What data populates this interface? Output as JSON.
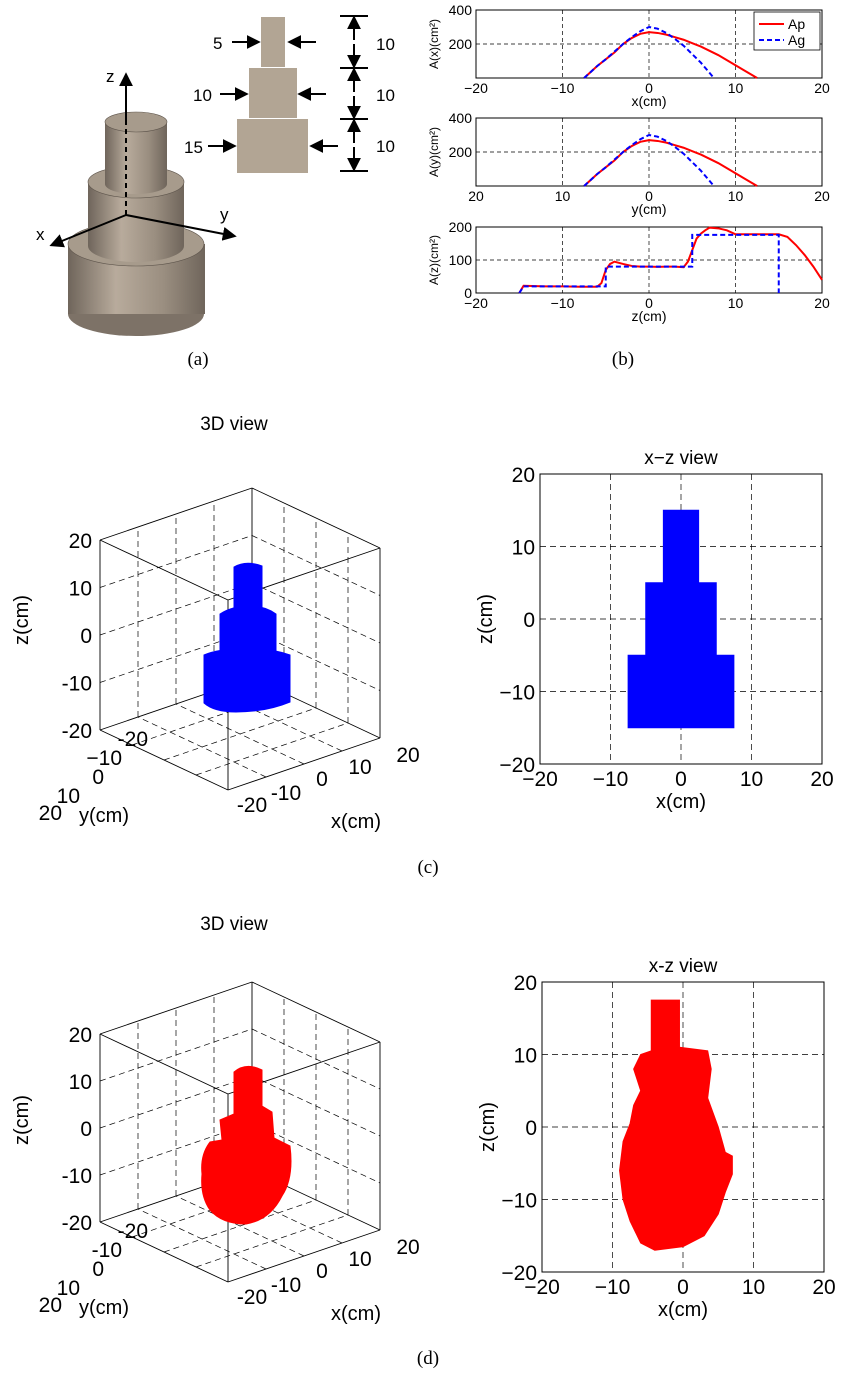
{
  "subfig_labels": [
    "(a)",
    "(b)",
    "(c)",
    "(d)"
  ],
  "panel_a": {
    "axis_labels": {
      "z": "z",
      "y": "y",
      "x": "x"
    },
    "diameter_labels": [
      "5",
      "10",
      "15"
    ],
    "height_labels": [
      "10",
      "10",
      "10"
    ],
    "colors": {
      "cylinder": "#9a8e80",
      "cylinder_light": "#b8ab9c",
      "cylinder_dark": "#6f655b",
      "inset": "#b2a594"
    }
  },
  "chart_data": [
    {
      "type": "line",
      "xlabel": "x(cm)",
      "ylabel": "A(x)(cm²)",
      "xlim": [
        -20,
        20
      ],
      "ylim": [
        0,
        400
      ],
      "xticks": [
        -20,
        -10,
        0,
        10,
        20
      ],
      "yticks": [
        200,
        400
      ],
      "grid": true,
      "legend": {
        "position": "top-right",
        "entries": [
          "Ap",
          "Ag"
        ]
      },
      "series": [
        {
          "name": "Ap",
          "color": "#ff0000",
          "dash": "solid",
          "x": [
            -7.5,
            -6,
            -5,
            -4,
            -3,
            -2,
            -1,
            0,
            1,
            2,
            3,
            4,
            5,
            6,
            7,
            8,
            9,
            10,
            11,
            12.5
          ],
          "y": [
            0,
            70,
            110,
            150,
            200,
            235,
            260,
            270,
            265,
            255,
            240,
            225,
            205,
            185,
            160,
            135,
            105,
            75,
            45,
            0
          ]
        },
        {
          "name": "Ag",
          "color": "#0000ff",
          "dash": "dashed",
          "x": [
            -7.5,
            -6,
            -5,
            -4,
            -3,
            -2,
            -1,
            0,
            1,
            2,
            3,
            4,
            5,
            6,
            7,
            7.5
          ],
          "y": [
            0,
            70,
            110,
            155,
            200,
            240,
            275,
            300,
            290,
            265,
            230,
            190,
            140,
            90,
            30,
            0
          ]
        }
      ]
    },
    {
      "type": "line",
      "xlabel": "y(cm)",
      "ylabel": "A(y)(cm²)",
      "xlim": [
        -20,
        20
      ],
      "ylim": [
        0,
        400
      ],
      "xticks": [
        -20,
        -10,
        0,
        10,
        20
      ],
      "xticklabels": [
        "20",
        "10",
        "0",
        "10",
        "20"
      ],
      "yticks": [
        200,
        400
      ],
      "grid": true,
      "series": [
        {
          "name": "Ap",
          "color": "#ff0000",
          "dash": "solid",
          "x": [
            -7.5,
            -6,
            -5,
            -4,
            -3,
            -2,
            -1,
            0,
            1,
            2,
            3,
            4,
            5,
            6,
            7,
            8,
            9,
            10,
            11,
            12.5
          ],
          "y": [
            0,
            70,
            110,
            150,
            200,
            235,
            260,
            270,
            265,
            255,
            240,
            225,
            205,
            185,
            160,
            135,
            105,
            75,
            45,
            0
          ]
        },
        {
          "name": "Ag",
          "color": "#0000ff",
          "dash": "dashed",
          "x": [
            -7.5,
            -6,
            -5,
            -4,
            -3,
            -2,
            -1,
            0,
            1,
            2,
            3,
            4,
            5,
            6,
            7,
            7.5
          ],
          "y": [
            0,
            70,
            110,
            155,
            200,
            240,
            275,
            300,
            290,
            265,
            230,
            190,
            140,
            90,
            30,
            0
          ]
        }
      ]
    },
    {
      "type": "line",
      "xlabel": "z(cm)",
      "ylabel": "A(z)(cm²)",
      "xlim": [
        -20,
        20
      ],
      "ylim": [
        0,
        200
      ],
      "xticks": [
        -20,
        -10,
        0,
        10,
        20
      ],
      "yticks": [
        0,
        100,
        200
      ],
      "grid": true,
      "series": [
        {
          "name": "Ap",
          "color": "#ff0000",
          "dash": "solid",
          "x": [
            -15,
            -14.5,
            -12,
            -10,
            -8,
            -6,
            -5.5,
            -5,
            -4.5,
            -4,
            -3,
            -2,
            -1,
            0,
            1,
            2,
            3,
            4,
            4.5,
            5,
            5.5,
            6,
            6.5,
            7,
            8,
            9,
            10,
            11,
            12,
            13,
            14,
            15,
            16,
            17,
            18,
            19,
            20
          ],
          "y": [
            0,
            22,
            20,
            20,
            19,
            19,
            30,
            70,
            88,
            95,
            88,
            82,
            80,
            80,
            79,
            80,
            80,
            78,
            95,
            130,
            165,
            180,
            190,
            198,
            196,
            190,
            178,
            178,
            178,
            178,
            178,
            178,
            170,
            145,
            115,
            80,
            40
          ]
        },
        {
          "name": "Ag",
          "color": "#0000ff",
          "dash": "dashed",
          "x": [
            -15,
            -14.5,
            -5,
            -5,
            5,
            5,
            15,
            15
          ],
          "y": [
            0,
            20,
            20,
            80,
            80,
            176,
            176,
            0
          ]
        }
      ]
    },
    {
      "type": "scatter",
      "title": "3D view",
      "xlabel": "x(cm)",
      "ylabel": "y(cm)",
      "zlabel": "z(cm)",
      "zticks": [
        -20,
        -10,
        0,
        10,
        20
      ],
      "yticks": [
        -20,
        -10,
        0,
        10,
        20
      ],
      "xticks": [
        -20,
        -10,
        0,
        10,
        20
      ],
      "xticklabels": [
        "-20",
        "-10",
        "0",
        "10",
        "20"
      ],
      "yticklabels": [
        "-20",
        "−10",
        "0",
        "10",
        "20"
      ],
      "color": "#0000ff",
      "grid": true
    },
    {
      "type": "scatter",
      "title": "x−z view",
      "xlabel": "x(cm)",
      "ylabel": "z(cm)",
      "xlim": [
        -20,
        20
      ],
      "ylim": [
        -20,
        20
      ],
      "xticks": [
        -20,
        -10,
        0,
        10,
        20
      ],
      "yticks": [
        -20,
        -10,
        0,
        10,
        20
      ],
      "xticklabels": [
        "−20",
        "−10",
        "0",
        "10",
        "20"
      ],
      "yticklabels": [
        "−20",
        "−10",
        "0",
        "10",
        "20"
      ],
      "color": "#0000ff",
      "grid": true,
      "shape_tiers": [
        {
          "x": [
            -7.5,
            7.5
          ],
          "z": [
            -15,
            -5
          ]
        },
        {
          "x": [
            -5,
            5
          ],
          "z": [
            -5,
            5
          ]
        },
        {
          "x": [
            -2.5,
            2.5
          ],
          "z": [
            5,
            15
          ]
        }
      ]
    },
    {
      "type": "scatter",
      "title": "3D view",
      "xlabel": "x(cm)",
      "ylabel": "y(cm)",
      "zlabel": "z(cm)",
      "zticks": [
        -20,
        -10,
        0,
        10,
        20
      ],
      "yticks": [
        -20,
        -10,
        0,
        10,
        20
      ],
      "xticks": [
        -20,
        -10,
        0,
        10,
        20
      ],
      "xticklabels": [
        "-20",
        "-10",
        "0",
        "10",
        "20"
      ],
      "yticklabels": [
        "-20",
        "-10",
        "0",
        "10",
        "20"
      ],
      "color": "#ff0000",
      "grid": true
    },
    {
      "type": "scatter",
      "title": "x-z view",
      "xlabel": "x(cm)",
      "ylabel": "z(cm)",
      "xlim": [
        -20,
        20
      ],
      "ylim": [
        -20,
        20
      ],
      "xticks": [
        -20,
        -10,
        0,
        10,
        20
      ],
      "yticks": [
        -20,
        -10,
        0,
        10,
        20
      ],
      "xticklabels": [
        "−20",
        "−10",
        "0",
        "10",
        "20"
      ],
      "yticklabels": [
        "−20",
        "−10",
        "0",
        "10",
        "20"
      ],
      "color": "#ff0000",
      "grid": true,
      "outline": [
        [
          -4.5,
          17.5
        ],
        [
          -0.5,
          17.5
        ],
        [
          -0.5,
          11
        ],
        [
          3.5,
          10.5
        ],
        [
          4,
          8
        ],
        [
          3.5,
          4
        ],
        [
          5,
          0
        ],
        [
          6,
          -3.5
        ],
        [
          7,
          -4
        ],
        [
          7,
          -6.5
        ],
        [
          6,
          -9
        ],
        [
          5,
          -12
        ],
        [
          3,
          -15
        ],
        [
          0,
          -16.5
        ],
        [
          -4,
          -17
        ],
        [
          -6,
          -16
        ],
        [
          -7.5,
          -13
        ],
        [
          -8.5,
          -10
        ],
        [
          -9,
          -6
        ],
        [
          -8.5,
          -2
        ],
        [
          -7.5,
          0.5
        ],
        [
          -7,
          3
        ],
        [
          -6,
          5
        ],
        [
          -7,
          8
        ],
        [
          -6,
          10
        ],
        [
          -4.5,
          10.5
        ]
      ]
    }
  ]
}
